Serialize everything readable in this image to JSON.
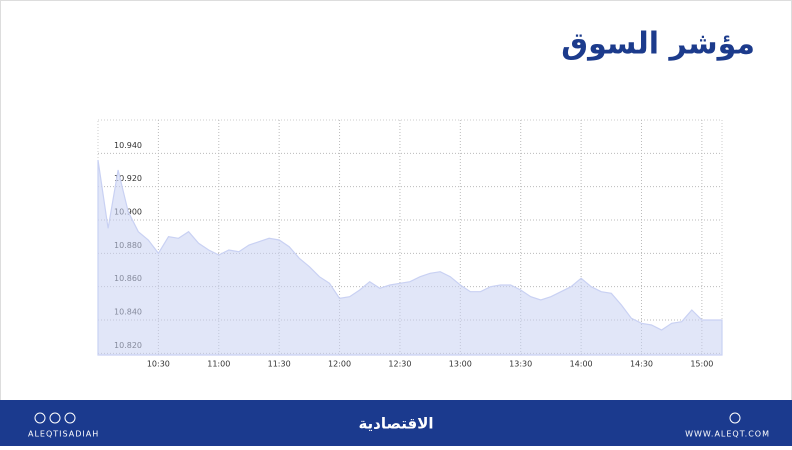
{
  "chart_data": {
    "type": "area",
    "title": "مؤشر السوق",
    "x": [
      "10:00",
      "10:05",
      "10:10",
      "10:15",
      "10:20",
      "10:25",
      "10:30",
      "10:35",
      "10:40",
      "10:45",
      "10:50",
      "10:55",
      "11:00",
      "11:05",
      "11:10",
      "11:15",
      "11:20",
      "11:25",
      "11:30",
      "11:35",
      "11:40",
      "11:45",
      "11:50",
      "11:55",
      "12:00",
      "12:05",
      "12:10",
      "12:15",
      "12:20",
      "12:25",
      "12:30",
      "12:35",
      "12:40",
      "12:45",
      "12:50",
      "12:55",
      "13:00",
      "13:05",
      "13:10",
      "13:15",
      "13:20",
      "13:25",
      "13:30",
      "13:35",
      "13:40",
      "13:45",
      "13:50",
      "13:55",
      "14:00",
      "14:05",
      "14:10",
      "14:15",
      "14:20",
      "14:25",
      "14:30",
      "14:35",
      "14:40",
      "14:45",
      "14:50",
      "14:55",
      "15:00",
      "15:05",
      "15:10"
    ],
    "series": [
      {
        "color": "#c9d1f3",
        "values": [
          10.936,
          10.895,
          10.93,
          10.905,
          10.893,
          10.888,
          10.88,
          10.89,
          10.889,
          10.893,
          10.886,
          10.882,
          10.879,
          10.882,
          10.881,
          10.885,
          10.887,
          10.889,
          10.888,
          10.884,
          10.877,
          10.872,
          10.866,
          10.862,
          10.853,
          10.854,
          10.858,
          10.863,
          10.859,
          10.861,
          10.862,
          10.863,
          10.866,
          10.868,
          10.869,
          10.866,
          10.861,
          10.857,
          10.857,
          10.86,
          10.861,
          10.861,
          10.858,
          10.854,
          10.852,
          10.854,
          10.857,
          10.86,
          10.865,
          10.86,
          10.857,
          10.856,
          10.849,
          10.841,
          10.838,
          10.837,
          10.834,
          10.838,
          10.839,
          10.846,
          10.84,
          10.84,
          10.84
        ]
      }
    ],
    "ylim": [
      10.819,
      10.96
    ],
    "yticks": [
      {
        "value": 10.82,
        "label": "10.820"
      },
      {
        "value": 10.84,
        "label": "10.840"
      },
      {
        "value": 10.86,
        "label": "10.860"
      },
      {
        "value": 10.88,
        "label": "10.880"
      },
      {
        "value": 10.9,
        "label": "10.900"
      },
      {
        "value": 10.92,
        "label": "10.920"
      },
      {
        "value": 10.94,
        "label": "10.940"
      }
    ],
    "xticks": [
      "10:30",
      "11:00",
      "11:30",
      "12:00",
      "12:30",
      "13:00",
      "13:30",
      "14:00",
      "14:30",
      "15:00"
    ],
    "grid": true
  },
  "footer": {
    "brand": "الاقتصادية",
    "handle": "ALEQTISADIAH",
    "website": "WWW.ALEQT.COM"
  }
}
